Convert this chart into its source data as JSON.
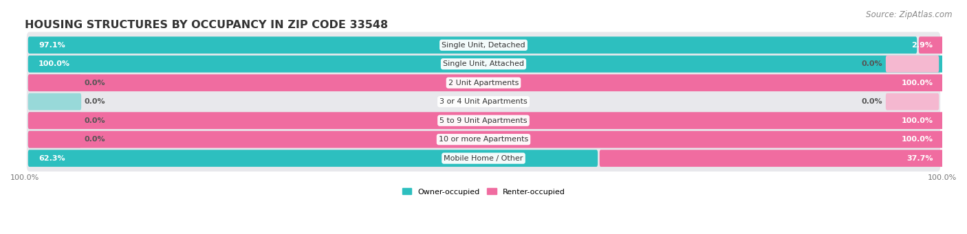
{
  "title": "HOUSING STRUCTURES BY OCCUPANCY IN ZIP CODE 33548",
  "source": "Source: ZipAtlas.com",
  "categories": [
    "Single Unit, Detached",
    "Single Unit, Attached",
    "2 Unit Apartments",
    "3 or 4 Unit Apartments",
    "5 to 9 Unit Apartments",
    "10 or more Apartments",
    "Mobile Home / Other"
  ],
  "owner_pct": [
    97.1,
    100.0,
    0.0,
    0.0,
    0.0,
    0.0,
    62.3
  ],
  "renter_pct": [
    2.9,
    0.0,
    100.0,
    0.0,
    100.0,
    100.0,
    37.7
  ],
  "owner_color": "#2dbfbf",
  "renter_color": "#f06ca0",
  "owner_color_light": "#98d9d9",
  "renter_color_light": "#f5b8d0",
  "row_bg_color": "#e8e8ec",
  "title_fontsize": 11.5,
  "source_fontsize": 8.5,
  "label_fontsize": 8,
  "bar_label_fontsize": 8,
  "axis_label_fontsize": 8,
  "title_color": "#333333",
  "source_color": "#888888",
  "label_color": "#333333",
  "axis_label_color": "#777777"
}
